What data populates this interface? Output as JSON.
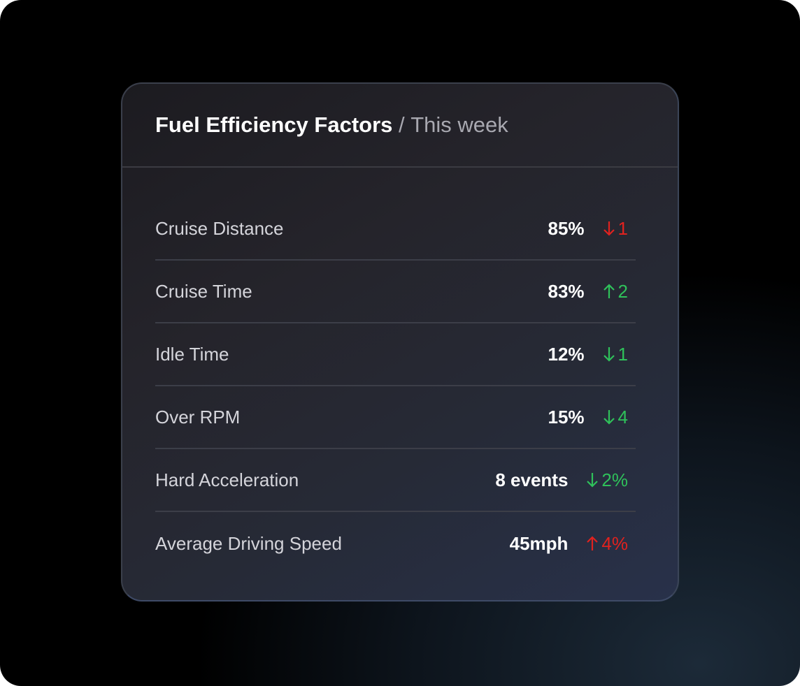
{
  "card": {
    "title": "Fuel Efficiency Factors",
    "separator": " / ",
    "period": "This week"
  },
  "colors": {
    "negative": "#e0221f",
    "positive": "#2fc15a"
  },
  "rows": [
    {
      "label": "Cruise Distance",
      "value": "85%",
      "direction": "down",
      "change": "1",
      "sentiment": "negative"
    },
    {
      "label": "Cruise Time",
      "value": "83%",
      "direction": "up",
      "change": "2",
      "sentiment": "positive"
    },
    {
      "label": "Idle Time",
      "value": "12%",
      "direction": "down",
      "change": "1",
      "sentiment": "positive"
    },
    {
      "label": "Over RPM",
      "value": "15%",
      "direction": "down",
      "change": "4",
      "sentiment": "positive"
    },
    {
      "label": "Hard Acceleration",
      "value": "8 events",
      "direction": "down",
      "change": "2%",
      "sentiment": "positive"
    },
    {
      "label": "Average Driving Speed",
      "value": "45mph",
      "direction": "up",
      "change": "4%",
      "sentiment": "negative"
    }
  ]
}
